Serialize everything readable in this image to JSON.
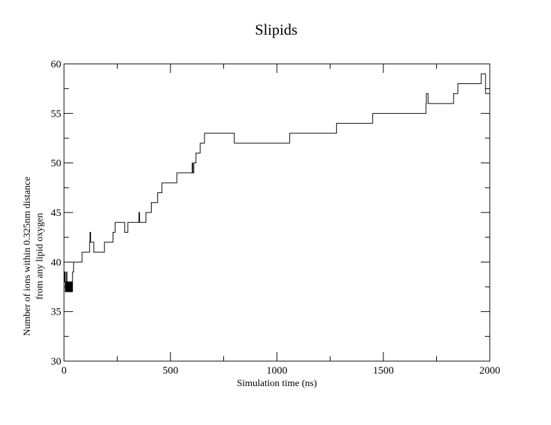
{
  "chart_data": {
    "type": "line",
    "title": "Slipids",
    "xlabel": "Simulation time (ns)",
    "ylabel_lines": [
      "Number of ions within 0.325nm distance",
      "from any lipid oxygen"
    ],
    "xlim": [
      0,
      2000
    ],
    "ylim": [
      30,
      60
    ],
    "x_ticks": [
      0,
      500,
      1000,
      1500,
      2000
    ],
    "y_ticks": [
      30,
      35,
      40,
      45,
      50,
      55,
      60
    ],
    "x_minor_step": 250,
    "y_minor_step": 2.5,
    "grid": false,
    "legend": "none",
    "line_color": "#000000",
    "series": [
      {
        "step": true,
        "x": [
          0,
          2,
          4,
          6,
          8,
          10,
          12,
          14,
          16,
          18,
          20,
          22,
          24,
          26,
          28,
          30,
          32,
          34,
          36,
          38,
          40,
          42,
          45,
          50,
          55,
          60,
          70,
          85,
          100,
          110,
          120,
          122,
          125,
          130,
          140,
          150,
          160,
          190,
          200,
          230,
          240,
          280,
          285,
          290,
          300,
          350,
          352,
          355,
          380,
          385,
          390,
          400,
          410,
          420,
          440,
          450,
          455,
          460,
          480,
          530,
          600,
          602,
          605,
          610,
          620,
          640,
          660,
          800,
          1000,
          1060,
          1100,
          1280,
          1300,
          1450,
          1460,
          1695,
          1700,
          1702,
          1705,
          1710,
          1720,
          1825,
          1830,
          1840,
          1850,
          1950,
          1960,
          1970,
          1975,
          1980,
          1990,
          2000
        ],
        "y": [
          39,
          38,
          39,
          37,
          38,
          37,
          39,
          37,
          38,
          37,
          38,
          37,
          38,
          37,
          38,
          37,
          38,
          37,
          38,
          37,
          39,
          39,
          40,
          40,
          40,
          40,
          40,
          41,
          41,
          41,
          42,
          43,
          42,
          42,
          41,
          41,
          41,
          42,
          42,
          43,
          44,
          44,
          43,
          43,
          44,
          44,
          45,
          44,
          44,
          45,
          45,
          45,
          46,
          46,
          47,
          47,
          47,
          48,
          48,
          49,
          49,
          50,
          49,
          50,
          51,
          52,
          53,
          52,
          52,
          53,
          53,
          54,
          54,
          55,
          55,
          55,
          56,
          57,
          57,
          56,
          56,
          56,
          57,
          57,
          58,
          58,
          59,
          59,
          59,
          57,
          57,
          57
        ]
      }
    ]
  }
}
